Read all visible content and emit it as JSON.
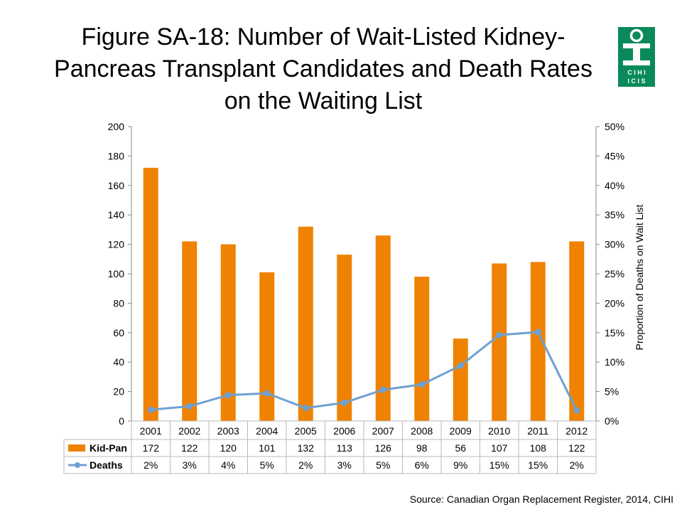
{
  "title": "Figure SA-18: Number of Wait-Listed Kidney-Pancreas Transplant Candidates and Death Rates on the Waiting List",
  "logo_text": [
    "C I H I",
    "I C I S"
  ],
  "source": "Source: Canadian Organ Replacement Register, 2014, CIHI",
  "colors": {
    "bar": "#ef8200",
    "line": "#6fa0d2",
    "grid": "#c8c8c8",
    "logo": "#0a8a5b"
  },
  "chart_data": {
    "type": "bar",
    "categories": [
      "2001",
      "2002",
      "2003",
      "2004",
      "2005",
      "2006",
      "2007",
      "2008",
      "2009",
      "2010",
      "2011",
      "2012"
    ],
    "series": [
      {
        "name": "Kid-Pan",
        "type": "bar",
        "axis": "left",
        "values": [
          172,
          122,
          120,
          101,
          132,
          113,
          126,
          98,
          56,
          107,
          108,
          122
        ],
        "labels": [
          "172",
          "122",
          "120",
          "101",
          "132",
          "113",
          "126",
          "98",
          "56",
          "107",
          "108",
          "122"
        ]
      },
      {
        "name": "Deaths",
        "type": "line",
        "axis": "right",
        "values": [
          0.019,
          0.025,
          0.044,
          0.047,
          0.022,
          0.031,
          0.053,
          0.062,
          0.094,
          0.146,
          0.151,
          0.018
        ],
        "labels": [
          "2%",
          "3%",
          "4%",
          "5%",
          "2%",
          "3%",
          "5%",
          "6%",
          "9%",
          "15%",
          "15%",
          "2%"
        ]
      }
    ],
    "ylim": [
      0,
      200
    ],
    "yticks": [
      "0",
      "20",
      "40",
      "60",
      "80",
      "100",
      "120",
      "140",
      "160",
      "180",
      "200"
    ],
    "y2lim": [
      0,
      0.5
    ],
    "y2ticks": [
      "0%",
      "5%",
      "10%",
      "15%",
      "20%",
      "25%",
      "30%",
      "35%",
      "40%",
      "45%",
      "50%"
    ],
    "ylabel": "",
    "y2label": "Proportion of Deaths on Wait List",
    "legend": "data-table"
  }
}
